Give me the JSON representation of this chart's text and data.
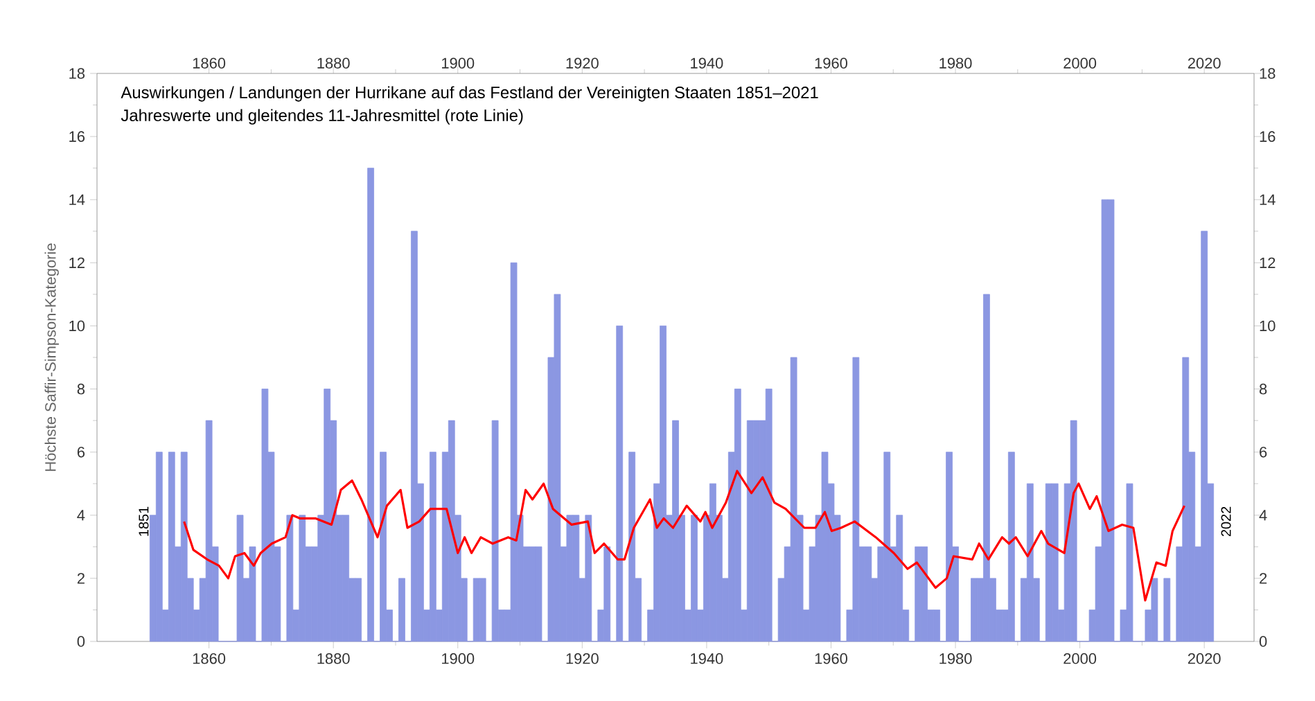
{
  "chart_data": {
    "type": "bar",
    "title": "Auswirkungen / Landungen der Hurrikane auf das Festland der Vereinigten Staaten 1851–2021",
    "subtitle": "Jahreswerte und gleitendes 11-Jahresmittel (rote Linie)",
    "ylabel": "Höchste Saffir-Simpson-Kategorie",
    "x": [
      1851,
      1852,
      1853,
      1854,
      1855,
      1856,
      1857,
      1858,
      1859,
      1860,
      1861,
      1862,
      1863,
      1864,
      1865,
      1866,
      1867,
      1868,
      1869,
      1870,
      1871,
      1872,
      1873,
      1874,
      1875,
      1876,
      1877,
      1878,
      1879,
      1880,
      1881,
      1882,
      1883,
      1884,
      1885,
      1886,
      1887,
      1888,
      1889,
      1890,
      1891,
      1892,
      1893,
      1894,
      1895,
      1896,
      1897,
      1898,
      1899,
      1900,
      1901,
      1902,
      1903,
      1904,
      1905,
      1906,
      1907,
      1908,
      1909,
      1910,
      1911,
      1912,
      1913,
      1914,
      1915,
      1916,
      1917,
      1918,
      1919,
      1920,
      1921,
      1922,
      1923,
      1924,
      1925,
      1926,
      1927,
      1928,
      1929,
      1930,
      1931,
      1932,
      1933,
      1934,
      1935,
      1936,
      1937,
      1938,
      1939,
      1940,
      1941,
      1942,
      1943,
      1944,
      1945,
      1946,
      1947,
      1948,
      1949,
      1950,
      1951,
      1952,
      1953,
      1954,
      1955,
      1956,
      1957,
      1958,
      1959,
      1960,
      1961,
      1962,
      1963,
      1964,
      1965,
      1966,
      1967,
      1968,
      1969,
      1970,
      1971,
      1972,
      1973,
      1974,
      1975,
      1976,
      1977,
      1978,
      1979,
      1980,
      1981,
      1982,
      1983,
      1984,
      1985,
      1986,
      1987,
      1988,
      1989,
      1990,
      1991,
      1992,
      1993,
      1994,
      1995,
      1996,
      1997,
      1998,
      1999,
      2000,
      2001,
      2002,
      2003,
      2004,
      2005,
      2006,
      2007,
      2008,
      2009,
      2010,
      2011,
      2012,
      2013,
      2014,
      2015,
      2016,
      2017,
      2018,
      2019,
      2020,
      2021
    ],
    "series": [
      {
        "color": "#8b97e2",
        "values": [
          4,
          6,
          1,
          6,
          3,
          6,
          2,
          1,
          2,
          7,
          3,
          0,
          0,
          0,
          4,
          2,
          3,
          0,
          8,
          6,
          3,
          0,
          4,
          1,
          4,
          3,
          3,
          4,
          8,
          7,
          4,
          4,
          2,
          2,
          0,
          15,
          0,
          6,
          1,
          0,
          2,
          0,
          13,
          5,
          1,
          6,
          1,
          6,
          7,
          4,
          2,
          0,
          2,
          2,
          0,
          7,
          1,
          1,
          12,
          4,
          3,
          3,
          3,
          0,
          9,
          11,
          3,
          4,
          4,
          2,
          4,
          0,
          1,
          3,
          0,
          10,
          0,
          6,
          2,
          0,
          1,
          5,
          10,
          4,
          7,
          4,
          1,
          4,
          1,
          4,
          5,
          4,
          2,
          6,
          8,
          1,
          7,
          7,
          7,
          8,
          0,
          2,
          3,
          9,
          4,
          1,
          3,
          4,
          6,
          5,
          4,
          0,
          1,
          9,
          3,
          3,
          2,
          3,
          6,
          3,
          4,
          1,
          0,
          3,
          3,
          1,
          1,
          0,
          6,
          3,
          0,
          0,
          2,
          2,
          11,
          2,
          1,
          1,
          6,
          0,
          2,
          5,
          2,
          0,
          5,
          5,
          1,
          5,
          7,
          0,
          0,
          1,
          3,
          14,
          14,
          0,
          1,
          5,
          0,
          0,
          1,
          2,
          0,
          2,
          0,
          3,
          9,
          6,
          3,
          13,
          5
        ]
      },
      {
        "type": "line",
        "color": "#ff0000",
        "x": [
          1856.0,
          1857.5,
          1859.7,
          1861.6,
          1863.1,
          1864.2,
          1865.7,
          1867.2,
          1868.3,
          1870.1,
          1872.3,
          1873.4,
          1874.6,
          1877.1,
          1879.7,
          1881.2,
          1883,
          1884.5,
          1887.1,
          1888.6,
          1890.8,
          1891.9,
          1893.8,
          1895.6,
          1897.1,
          1898.2,
          1900,
          1901.1,
          1902.2,
          1903.7,
          1905.6,
          1908.1,
          1909.4,
          1910.9,
          1912,
          1913.8,
          1915.3,
          1918.3,
          1920.9,
          1922,
          1923.5,
          1925.7,
          1926.8,
          1928.3,
          1930.9,
          1932,
          1933.1,
          1934.6,
          1936.8,
          1939,
          1939.8,
          1940.9,
          1943.1,
          1944.9,
          1947.2,
          1949,
          1950.9,
          1952.7,
          1955.7,
          1957.5,
          1959,
          1960.1,
          1961.6,
          1963.8,
          1967.2,
          1970.1,
          1972.3,
          1973.8,
          1976.8,
          1978.6,
          1979.7,
          1982.7,
          1983.8,
          1985.3,
          1987.5,
          1988.6,
          1989.7,
          1991.6,
          1993.8,
          1994.9,
          1997.5,
          1999,
          1999.8,
          2001.6,
          2002.7,
          2004.6,
          2006.8,
          2008.6,
          2010.5,
          2012.3,
          2013.8,
          2014.9,
          2016.8
        ],
        "values": [
          3.8,
          2.9,
          2.6,
          2.4,
          2.0,
          2.7,
          2.8,
          2.4,
          2.8,
          3.1,
          3.3,
          4.0,
          3.9,
          3.9,
          3.7,
          4.8,
          5.1,
          4.5,
          3.3,
          4.3,
          4.8,
          3.6,
          3.8,
          4.2,
          4.2,
          4.2,
          2.8,
          3.3,
          2.8,
          3.3,
          3.1,
          3.3,
          3.2,
          4.8,
          4.5,
          5.0,
          4.2,
          3.7,
          3.8,
          2.8,
          3.1,
          2.6,
          2.6,
          3.6,
          4.5,
          3.6,
          3.9,
          3.6,
          4.3,
          3.8,
          4.1,
          3.6,
          4.4,
          5.4,
          4.7,
          5.2,
          4.4,
          4.2,
          3.6,
          3.6,
          4.1,
          3.5,
          3.6,
          3.8,
          3.3,
          2.8,
          2.3,
          2.5,
          1.7,
          2.0,
          2.7,
          2.6,
          3.1,
          2.6,
          3.3,
          3.1,
          3.3,
          2.7,
          3.5,
          3.1,
          2.8,
          4.7,
          5.0,
          4.2,
          4.6,
          3.5,
          3.7,
          3.6,
          1.3,
          2.5,
          2.4,
          3.5,
          4.3
        ]
      }
    ],
    "annotations": [
      {
        "text": "1851",
        "x": 1851,
        "y": 3.8
      },
      {
        "text": "2022",
        "x": 2022,
        "y": 3.8
      }
    ],
    "xlim": [
      1842,
      2028
    ],
    "xticks": [
      1860,
      1880,
      1900,
      1920,
      1940,
      1960,
      1980,
      2000,
      2020
    ],
    "x2lim": [
      1842,
      2028
    ],
    "x2ticks": [
      1860,
      1880,
      1900,
      1920,
      1940,
      1960,
      1980,
      2000,
      2020
    ],
    "ylim": [
      0,
      18
    ],
    "yticks": [
      0,
      2,
      4,
      6,
      8,
      10,
      12,
      14,
      16,
      18
    ],
    "y2lim": [
      0,
      18
    ],
    "y2ticks": [
      0,
      2,
      4,
      6,
      8,
      10,
      12,
      14,
      16,
      18
    ]
  }
}
